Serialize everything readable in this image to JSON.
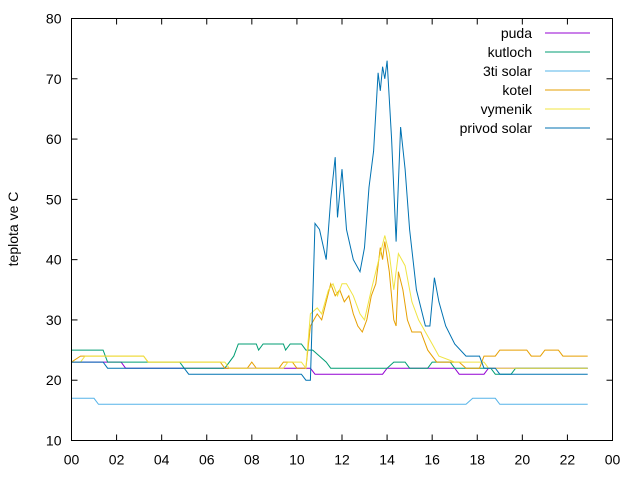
{
  "chart_data": {
    "type": "line",
    "title": "",
    "xlabel": "",
    "ylabel": "teplota ve C",
    "xlim": [
      0,
      24
    ],
    "ylim": [
      10,
      80
    ],
    "x_ticks": [
      "00",
      "02",
      "04",
      "06",
      "08",
      "10",
      "12",
      "14",
      "16",
      "18",
      "20",
      "22",
      "00"
    ],
    "y_ticks": [
      "10",
      "20",
      "30",
      "40",
      "50",
      "60",
      "70",
      "80"
    ],
    "grid": false,
    "legend": "top-right",
    "series": [
      {
        "name": "puda",
        "color": "#9400d3",
        "points": [
          [
            0,
            23
          ],
          [
            2.2,
            23
          ],
          [
            2.4,
            22
          ],
          [
            5.6,
            22
          ],
          [
            5.8,
            22
          ],
          [
            10.6,
            22
          ],
          [
            10.8,
            21
          ],
          [
            13.8,
            21
          ],
          [
            14,
            22
          ],
          [
            17,
            22
          ],
          [
            17.2,
            21
          ],
          [
            18.3,
            21
          ],
          [
            18.5,
            22
          ],
          [
            22.9,
            22
          ]
        ]
      },
      {
        "name": "kutloch",
        "color": "#009e73",
        "points": [
          [
            0,
            25
          ],
          [
            1.4,
            25
          ],
          [
            1.6,
            23
          ],
          [
            4.8,
            23
          ],
          [
            5,
            22
          ],
          [
            6.8,
            22
          ],
          [
            7.2,
            24
          ],
          [
            7.4,
            26
          ],
          [
            8.2,
            26
          ],
          [
            8.3,
            25
          ],
          [
            8.5,
            26
          ],
          [
            9.4,
            26
          ],
          [
            9.5,
            25
          ],
          [
            9.7,
            26
          ],
          [
            10.2,
            26
          ],
          [
            10.4,
            25
          ],
          [
            10.7,
            25
          ],
          [
            11,
            24
          ],
          [
            11.3,
            23
          ],
          [
            11.5,
            22
          ],
          [
            14,
            22
          ],
          [
            14.3,
            23
          ],
          [
            14.8,
            23
          ],
          [
            15,
            22
          ],
          [
            15.8,
            22
          ],
          [
            16,
            23
          ],
          [
            16.8,
            23
          ],
          [
            17,
            22
          ],
          [
            18.6,
            22
          ],
          [
            18.8,
            21
          ],
          [
            19.5,
            21
          ],
          [
            19.7,
            22
          ],
          [
            22.9,
            22
          ]
        ]
      },
      {
        "name": "3ti solar",
        "color": "#56b4e9",
        "points": [
          [
            0,
            17
          ],
          [
            1,
            17
          ],
          [
            1.2,
            16
          ],
          [
            17.5,
            16
          ],
          [
            17.8,
            17
          ],
          [
            18.8,
            17
          ],
          [
            19,
            16
          ],
          [
            22.9,
            16
          ]
        ]
      },
      {
        "name": "kotel",
        "color": "#e69f00",
        "points": [
          [
            0,
            23
          ],
          [
            0.4,
            24
          ],
          [
            3.2,
            24
          ],
          [
            3.4,
            23
          ],
          [
            6.6,
            23
          ],
          [
            6.8,
            22
          ],
          [
            7.8,
            22
          ],
          [
            8,
            23
          ],
          [
            8.2,
            22
          ],
          [
            9.2,
            22
          ],
          [
            9.4,
            23
          ],
          [
            9.8,
            23
          ],
          [
            10,
            22
          ],
          [
            10.4,
            22
          ],
          [
            10.6,
            29
          ],
          [
            10.9,
            31
          ],
          [
            11.1,
            30
          ],
          [
            11.3,
            33
          ],
          [
            11.5,
            36
          ],
          [
            11.7,
            34
          ],
          [
            11.9,
            35
          ],
          [
            12.1,
            33
          ],
          [
            12.3,
            34
          ],
          [
            12.5,
            31
          ],
          [
            12.7,
            29
          ],
          [
            12.9,
            28
          ],
          [
            13.1,
            30
          ],
          [
            13.3,
            34
          ],
          [
            13.5,
            36
          ],
          [
            13.7,
            42
          ],
          [
            13.8,
            40
          ],
          [
            13.9,
            43
          ],
          [
            14.1,
            38
          ],
          [
            14.3,
            30
          ],
          [
            14.4,
            29
          ],
          [
            14.5,
            38
          ],
          [
            14.7,
            35
          ],
          [
            14.9,
            30
          ],
          [
            15.1,
            28
          ],
          [
            15.5,
            28
          ],
          [
            15.8,
            25
          ],
          [
            16.2,
            23
          ],
          [
            17.2,
            23
          ],
          [
            17.5,
            22
          ],
          [
            18.1,
            22
          ],
          [
            18.3,
            24
          ],
          [
            18.8,
            24
          ],
          [
            19,
            25
          ],
          [
            20.2,
            25
          ],
          [
            20.4,
            24
          ],
          [
            20.8,
            24
          ],
          [
            21,
            25
          ],
          [
            21.6,
            25
          ],
          [
            21.8,
            24
          ],
          [
            22.9,
            24
          ]
        ]
      },
      {
        "name": "vymenik",
        "color": "#f0e442",
        "points": [
          [
            0,
            23
          ],
          [
            0.4,
            23
          ],
          [
            0.6,
            24
          ],
          [
            3.2,
            24
          ],
          [
            3.4,
            23
          ],
          [
            6.8,
            23
          ],
          [
            7,
            22
          ],
          [
            9.4,
            22
          ],
          [
            9.6,
            23
          ],
          [
            10.2,
            23
          ],
          [
            10.4,
            22
          ],
          [
            10.6,
            31
          ],
          [
            10.9,
            32
          ],
          [
            11.1,
            31
          ],
          [
            11.4,
            35
          ],
          [
            11.6,
            36
          ],
          [
            11.8,
            34
          ],
          [
            12,
            36
          ],
          [
            12.2,
            36
          ],
          [
            12.5,
            34
          ],
          [
            12.8,
            31
          ],
          [
            13,
            30
          ],
          [
            13.3,
            35
          ],
          [
            13.5,
            38
          ],
          [
            13.7,
            41
          ],
          [
            13.9,
            44
          ],
          [
            14.1,
            41
          ],
          [
            14.3,
            35
          ],
          [
            14.5,
            41
          ],
          [
            14.8,
            39
          ],
          [
            15.1,
            33
          ],
          [
            15.4,
            30
          ],
          [
            15.7,
            28
          ],
          [
            16,
            26
          ],
          [
            16.3,
            24
          ],
          [
            17,
            23
          ],
          [
            18.3,
            23
          ],
          [
            18.5,
            22
          ],
          [
            22.9,
            22
          ]
        ]
      },
      {
        "name": "privod solar",
        "color": "#0072b2",
        "points": [
          [
            0,
            23
          ],
          [
            1.4,
            23
          ],
          [
            1.6,
            22
          ],
          [
            5,
            22
          ],
          [
            5.2,
            21
          ],
          [
            10.2,
            21
          ],
          [
            10.4,
            20
          ],
          [
            10.6,
            20
          ],
          [
            10.8,
            46
          ],
          [
            11,
            45
          ],
          [
            11.3,
            40
          ],
          [
            11.5,
            50
          ],
          [
            11.7,
            57
          ],
          [
            11.8,
            47
          ],
          [
            12,
            55
          ],
          [
            12.2,
            45
          ],
          [
            12.5,
            40
          ],
          [
            12.8,
            38
          ],
          [
            13,
            42
          ],
          [
            13.2,
            52
          ],
          [
            13.4,
            58
          ],
          [
            13.6,
            71
          ],
          [
            13.7,
            68
          ],
          [
            13.8,
            72
          ],
          [
            13.9,
            70
          ],
          [
            14,
            73
          ],
          [
            14.2,
            60
          ],
          [
            14.4,
            43
          ],
          [
            14.6,
            62
          ],
          [
            14.8,
            55
          ],
          [
            15,
            45
          ],
          [
            15.3,
            35
          ],
          [
            15.5,
            32
          ],
          [
            15.7,
            29
          ],
          [
            15.9,
            29
          ],
          [
            16.1,
            37
          ],
          [
            16.3,
            33
          ],
          [
            16.6,
            29
          ],
          [
            17,
            26
          ],
          [
            17.5,
            24
          ],
          [
            18.1,
            24
          ],
          [
            18.3,
            22
          ],
          [
            18.8,
            22
          ],
          [
            19,
            21
          ],
          [
            22.9,
            21
          ]
        ]
      }
    ]
  }
}
